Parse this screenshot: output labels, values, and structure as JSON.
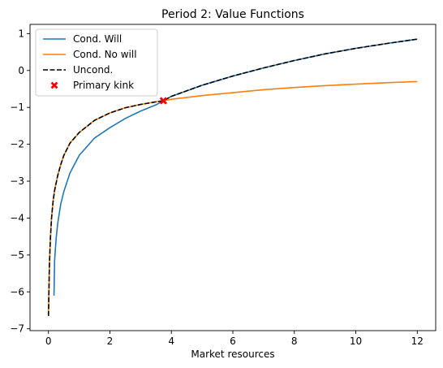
{
  "chart_data": {
    "type": "line",
    "title": "Period 2: Value Functions",
    "xlabel": "Market resources",
    "ylabel": "",
    "xlim": [
      -0.6,
      12.6
    ],
    "ylim": [
      -7.05,
      1.25
    ],
    "xticks": [
      0,
      2,
      4,
      6,
      8,
      10,
      12
    ],
    "yticks": [
      -7,
      -6,
      -5,
      -4,
      -3,
      -2,
      -1,
      0,
      1
    ],
    "grid": false,
    "legend_position": "top-left",
    "series": [
      {
        "name": "Cond. Will",
        "color": "#1f77b4",
        "style": "solid",
        "x": [
          0.18,
          0.2,
          0.25,
          0.3,
          0.4,
          0.5,
          0.7,
          1.0,
          1.5,
          2.0,
          2.5,
          3.0,
          3.5,
          3.74,
          4.0,
          5.0,
          6.0,
          7.0,
          8.0,
          9.0,
          10.0,
          11.0,
          12.0
        ],
        "y": [
          -6.1,
          -5.15,
          -4.55,
          -4.15,
          -3.62,
          -3.28,
          -2.78,
          -2.3,
          -1.83,
          -1.55,
          -1.3,
          -1.1,
          -0.93,
          -0.82,
          -0.7,
          -0.4,
          -0.15,
          0.07,
          0.27,
          0.45,
          0.6,
          0.73,
          0.85
        ]
      },
      {
        "name": "Cond. No will",
        "color": "#ff7f0e",
        "style": "solid",
        "x": [
          0.0,
          0.03,
          0.06,
          0.1,
          0.15,
          0.2,
          0.3,
          0.4,
          0.5,
          0.7,
          1.0,
          1.5,
          2.0,
          2.5,
          3.0,
          3.5,
          3.74,
          4.0,
          5.0,
          6.0,
          7.0,
          8.0,
          9.0,
          10.0,
          11.0,
          12.0
        ],
        "y": [
          -6.65,
          -5.3,
          -4.6,
          -4.0,
          -3.55,
          -3.25,
          -2.85,
          -2.55,
          -2.3,
          -1.97,
          -1.68,
          -1.35,
          -1.15,
          -1.01,
          -0.92,
          -0.85,
          -0.82,
          -0.78,
          -0.68,
          -0.6,
          -0.52,
          -0.46,
          -0.41,
          -0.37,
          -0.33,
          -0.3
        ]
      },
      {
        "name": "Uncond.",
        "color": "#000000",
        "style": "dashed",
        "x": [
          0.0,
          0.03,
          0.06,
          0.1,
          0.15,
          0.2,
          0.3,
          0.4,
          0.5,
          0.7,
          1.0,
          1.5,
          2.0,
          2.5,
          3.0,
          3.5,
          3.74,
          4.0,
          5.0,
          6.0,
          7.0,
          8.0,
          9.0,
          10.0,
          11.0,
          12.0
        ],
        "y": [
          -6.65,
          -5.3,
          -4.6,
          -4.0,
          -3.55,
          -3.25,
          -2.85,
          -2.55,
          -2.3,
          -1.97,
          -1.68,
          -1.35,
          -1.15,
          -1.01,
          -0.92,
          -0.85,
          -0.82,
          -0.7,
          -0.4,
          -0.15,
          0.07,
          0.27,
          0.45,
          0.6,
          0.73,
          0.85
        ]
      }
    ],
    "points": [
      {
        "name": "Primary kink",
        "color": "#ff0000",
        "marker": "x",
        "x": 3.74,
        "y": -0.82
      }
    ]
  }
}
